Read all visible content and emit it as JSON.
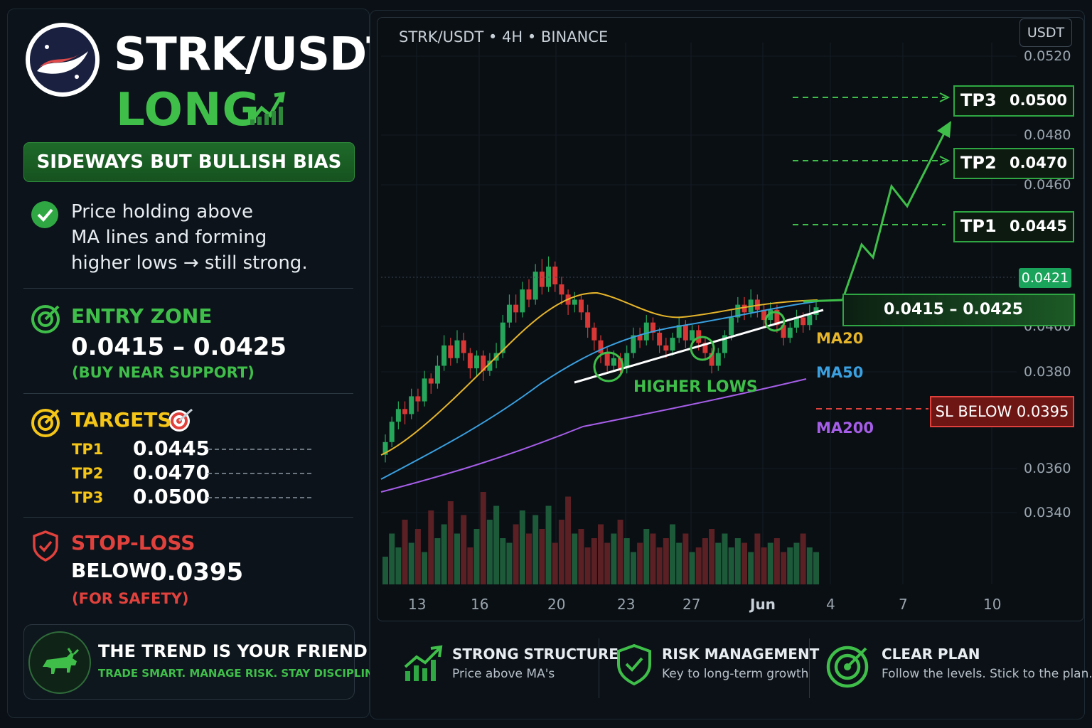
{
  "header": {
    "pair": "STRK/USDT",
    "direction": "LONG",
    "bias": "SIDEWAYS BUT BULLISH BIAS",
    "description_lines": [
      "Price holding above",
      "MA lines and forming",
      "higher lows → still strong."
    ]
  },
  "entry": {
    "title": "ENTRY ZONE",
    "range": "0.0415 – 0.0425",
    "note": "(BUY NEAR SUPPORT)"
  },
  "targets": {
    "title": "TARGETS",
    "items": [
      {
        "label": "TP1",
        "value": "0.0445"
      },
      {
        "label": "TP2",
        "value": "0.0470"
      },
      {
        "label": "TP3",
        "value": "0.0500"
      }
    ]
  },
  "stop_loss": {
    "title": "STOP-LOSS",
    "prefix": "BELOW",
    "value": "0.0395",
    "note": "(FOR SAFETY)"
  },
  "motto": {
    "title": "THE TREND IS YOUR FRIEND",
    "subtitle": "TRADE SMART. MANAGE RISK. STAY DISCIPLINED."
  },
  "footer": [
    {
      "title": "STRONG STRUCTURE",
      "subtitle": "Price above MA's",
      "icon": "chart-up-icon"
    },
    {
      "title": "RISK MANAGEMENT",
      "subtitle": "Key to long-term growth",
      "icon": "shield-check-icon"
    },
    {
      "title": "CLEAR PLAN",
      "subtitle": "Follow the levels. Stick to the plan.",
      "icon": "target-icon"
    }
  ],
  "colors": {
    "bull": "#26a65b",
    "bear": "#d93636",
    "accent": "#3fbf4a",
    "gold": "#f5c518",
    "danger": "#e0413c"
  },
  "chart_data": {
    "type": "candlestick",
    "header": "STRK/USDT • 4H • BINANCE",
    "quote_label": "USDT",
    "current_price": "0.0421",
    "y_ticks": [
      "0.0520",
      "0.0480",
      "0.0460",
      "0.0400",
      "0.0380",
      "0.0360",
      "0.0340"
    ],
    "x_ticks": [
      "13",
      "16",
      "20",
      "23",
      "27",
      "Jun",
      "4",
      "7",
      "10"
    ],
    "levels": [
      {
        "label": "TP3",
        "value": "0.0500"
      },
      {
        "label": "TP2",
        "value": "0.0470"
      },
      {
        "label": "TP1",
        "value": "0.0445"
      }
    ],
    "entry_zone": "0.0415 – 0.0425",
    "stop_loss_label": "SL BELOW 0.0395",
    "moving_averages": [
      {
        "name": "MA20",
        "color": "#e6b52a"
      },
      {
        "name": "MA50",
        "color": "#3aa0e0"
      },
      {
        "name": "MA200",
        "color": "#a65ee8"
      }
    ],
    "annotation": "HIGHER LOWS",
    "candles": [
      [
        0.0363,
        0.0368,
        0.036,
        0.0371
      ],
      [
        0.0368,
        0.0376,
        0.0366,
        0.0378
      ],
      [
        0.0376,
        0.0381,
        0.0373,
        0.0384
      ],
      [
        0.0381,
        0.0379,
        0.0375,
        0.0384
      ],
      [
        0.0379,
        0.0386,
        0.0377,
        0.0389
      ],
      [
        0.0386,
        0.0384,
        0.038,
        0.0389
      ],
      [
        0.0384,
        0.0393,
        0.0382,
        0.0396
      ],
      [
        0.0393,
        0.0391,
        0.0387,
        0.0395
      ],
      [
        0.0391,
        0.0398,
        0.0389,
        0.0402
      ],
      [
        0.0398,
        0.0406,
        0.0396,
        0.041
      ],
      [
        0.0406,
        0.0401,
        0.0398,
        0.0409
      ],
      [
        0.0401,
        0.0408,
        0.0399,
        0.0412
      ],
      [
        0.0408,
        0.0403,
        0.04,
        0.0411
      ],
      [
        0.0403,
        0.0397,
        0.0393,
        0.0405
      ],
      [
        0.0397,
        0.0402,
        0.0394,
        0.0404
      ],
      [
        0.0402,
        0.0396,
        0.0392,
        0.0404
      ],
      [
        0.0396,
        0.04,
        0.0394,
        0.0403
      ],
      [
        0.04,
        0.0403,
        0.0397,
        0.0407
      ],
      [
        0.0403,
        0.0415,
        0.0401,
        0.0418
      ],
      [
        0.0415,
        0.0422,
        0.0413,
        0.0426
      ],
      [
        0.0422,
        0.0419,
        0.0415,
        0.0426
      ],
      [
        0.0419,
        0.0428,
        0.0417,
        0.0431
      ],
      [
        0.0428,
        0.0424,
        0.0421,
        0.0432
      ],
      [
        0.0424,
        0.0435,
        0.0422,
        0.0438
      ],
      [
        0.0435,
        0.0429,
        0.0426,
        0.044
      ],
      [
        0.0429,
        0.0437,
        0.0427,
        0.0441
      ],
      [
        0.0437,
        0.043,
        0.0427,
        0.0439
      ],
      [
        0.043,
        0.0426,
        0.0422,
        0.0433
      ],
      [
        0.0426,
        0.0422,
        0.0418,
        0.0428
      ],
      [
        0.0422,
        0.0424,
        0.0419,
        0.0427
      ],
      [
        0.0424,
        0.0419,
        0.0416,
        0.0426
      ],
      [
        0.0419,
        0.0413,
        0.0409,
        0.0422
      ],
      [
        0.0413,
        0.0408,
        0.0404,
        0.0415
      ],
      [
        0.0408,
        0.0403,
        0.0399,
        0.041
      ],
      [
        0.0403,
        0.0398,
        0.0395,
        0.0405
      ],
      [
        0.0398,
        0.0401,
        0.0396,
        0.0404
      ],
      [
        0.0401,
        0.0397,
        0.0394,
        0.0403
      ],
      [
        0.0397,
        0.0403,
        0.0395,
        0.0406
      ],
      [
        0.0403,
        0.041,
        0.0401,
        0.0413
      ],
      [
        0.041,
        0.0408,
        0.0405,
        0.0413
      ],
      [
        0.0408,
        0.0415,
        0.0406,
        0.0418
      ],
      [
        0.0415,
        0.0411,
        0.0408,
        0.0417
      ],
      [
        0.0411,
        0.0406,
        0.0403,
        0.0413
      ],
      [
        0.0406,
        0.0404,
        0.0401,
        0.0409
      ],
      [
        0.0404,
        0.0409,
        0.0402,
        0.0411
      ],
      [
        0.0409,
        0.0414,
        0.0407,
        0.0417
      ],
      [
        0.0414,
        0.0408,
        0.0405,
        0.0416
      ],
      [
        0.0408,
        0.0412,
        0.0406,
        0.0414
      ],
      [
        0.0412,
        0.0407,
        0.0404,
        0.0414
      ],
      [
        0.0407,
        0.0403,
        0.04,
        0.0409
      ],
      [
        0.0403,
        0.0398,
        0.0395,
        0.0405
      ],
      [
        0.0398,
        0.0403,
        0.0396,
        0.0405
      ],
      [
        0.0403,
        0.041,
        0.0401,
        0.0412
      ],
      [
        0.041,
        0.0417,
        0.0408,
        0.042
      ],
      [
        0.0417,
        0.0422,
        0.0415,
        0.0425
      ],
      [
        0.0422,
        0.0419,
        0.0416,
        0.0425
      ],
      [
        0.0419,
        0.0424,
        0.0417,
        0.0428
      ],
      [
        0.0424,
        0.042,
        0.0417,
        0.0426
      ],
      [
        0.042,
        0.0416,
        0.0413,
        0.0422
      ],
      [
        0.0416,
        0.042,
        0.0414,
        0.0423
      ],
      [
        0.042,
        0.0414,
        0.0411,
        0.0422
      ],
      [
        0.0414,
        0.0409,
        0.0406,
        0.0416
      ],
      [
        0.0409,
        0.0413,
        0.0407,
        0.0415
      ],
      [
        0.0413,
        0.0417,
        0.0411,
        0.042
      ],
      [
        0.0417,
        0.0414,
        0.0411,
        0.0419
      ],
      [
        0.0414,
        0.0418,
        0.0412,
        0.0422
      ],
      [
        0.0418,
        0.0421,
        0.0416,
        0.0424
      ]
    ],
    "volumes": [
      30,
      55,
      40,
      70,
      45,
      60,
      35,
      80,
      50,
      65,
      90,
      55,
      75,
      40,
      60,
      100,
      70,
      85,
      50,
      45,
      65,
      80,
      55,
      75,
      60,
      85,
      45,
      70,
      95,
      55,
      60,
      40,
      50,
      65,
      45,
      55,
      70,
      50,
      35,
      45,
      60,
      55,
      40,
      50,
      65,
      45,
      55,
      35,
      40,
      50,
      60,
      45,
      55,
      40,
      50,
      45,
      35,
      55,
      40,
      45,
      50,
      35,
      40,
      45,
      55,
      40,
      35
    ]
  }
}
